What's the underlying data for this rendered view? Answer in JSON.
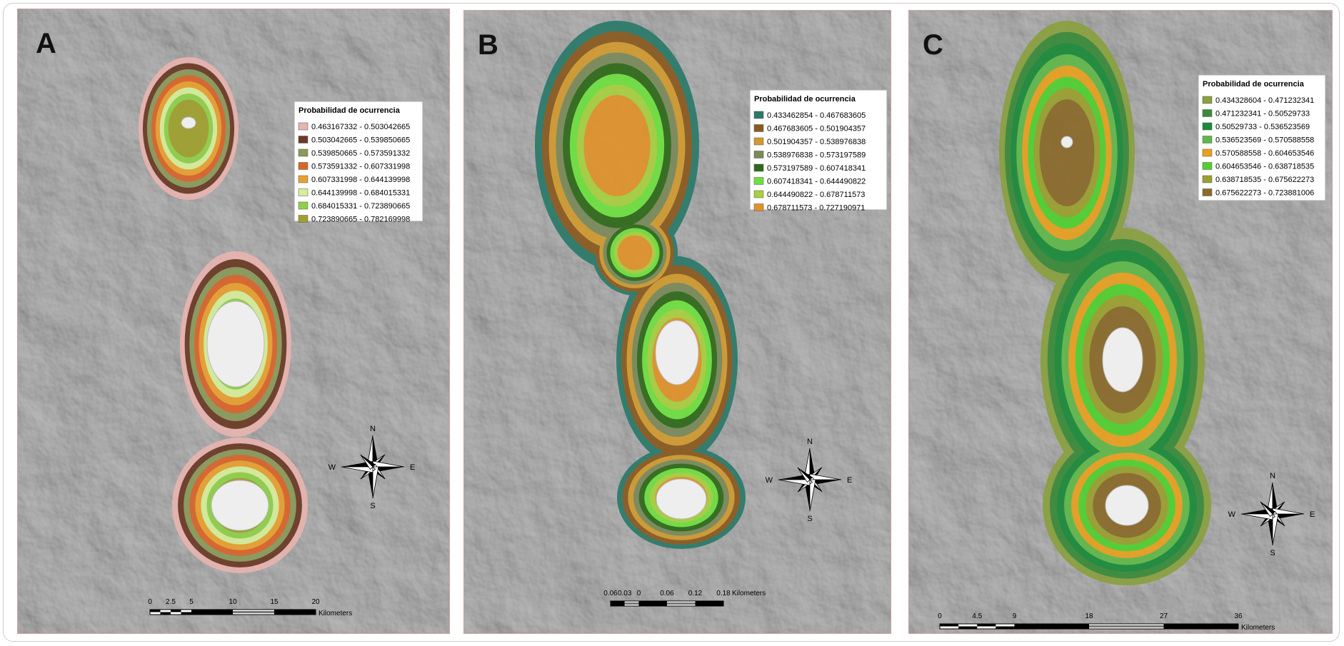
{
  "panels": [
    {
      "letter": "A",
      "legend_title": "Probabilidad de ocurrencia",
      "legend": [
        {
          "label": "0.463167332 - 0.503042665",
          "color": "#e8b4b0"
        },
        {
          "label": "0.503042665 - 0.539850665",
          "color": "#6b3a26"
        },
        {
          "label": "0.539850665 - 0.573591332",
          "color": "#8a9a5a"
        },
        {
          "label": "0.573591332 - 0.607331998",
          "color": "#d9642a"
        },
        {
          "label": "0.607331998 - 0.644139998",
          "color": "#e8a030"
        },
        {
          "label": "0.644139998 - 0.684015331",
          "color": "#d6ee9a"
        },
        {
          "label": "0.684015331 - 0.723890665",
          "color": "#8fd04a"
        },
        {
          "label": "0.723890665 - 0.782169998",
          "color": "#a0a030"
        }
      ],
      "scale_labels": [
        "0",
        "2.5",
        "5",
        "10",
        "15",
        "20"
      ],
      "scale_unit": "Kilometers",
      "compass": {
        "n": "N",
        "s": "S",
        "e": "E",
        "w": "W"
      }
    },
    {
      "letter": "B",
      "legend_title": "Probabilidad de ocurrencia",
      "legend": [
        {
          "label": "0.433462854 - 0.467683605",
          "color": "#2a7a6a"
        },
        {
          "label": "0.467683605 - 0.501904357",
          "color": "#8a5a20"
        },
        {
          "label": "0.501904357 - 0.538976838",
          "color": "#d09a30"
        },
        {
          "label": "0.538976838 - 0.573197589",
          "color": "#7a8a5a"
        },
        {
          "label": "0.573197589 - 0.607418341",
          "color": "#2f6a1a"
        },
        {
          "label": "0.607418341 - 0.644490822",
          "color": "#6ee040"
        },
        {
          "label": "0.644490822 - 0.678711573",
          "color": "#a8d040"
        },
        {
          "label": "0.678711573 - 0.727190971",
          "color": "#e0922a"
        }
      ],
      "scale_labels": [
        "0.06",
        "0.03",
        "0",
        "0.06",
        "0.12",
        "0.18"
      ],
      "scale_unit": "Kilometers",
      "compass": {
        "n": "N",
        "s": "S",
        "e": "E",
        "w": "W"
      }
    },
    {
      "letter": "C",
      "legend_title": "Probabilidad de ocurrencia",
      "legend": [
        {
          "label": "0.434328604 - 0.471232341",
          "color": "#8aa040"
        },
        {
          "label": "0.471232341 - 0.50529733",
          "color": "#3a8a3a"
        },
        {
          "label": "0.50529733 - 0.536523569",
          "color": "#1a8a3a"
        },
        {
          "label": "0.536523569 - 0.570588558",
          "color": "#60b84a"
        },
        {
          "label": "0.570588558 - 0.604653546",
          "color": "#e8a020"
        },
        {
          "label": "0.604653546 - 0.638718535",
          "color": "#50d030"
        },
        {
          "label": "0.638718535 - 0.675622273",
          "color": "#9aa030"
        },
        {
          "label": "0.675622273 - 0.723881006",
          "color": "#8a6a2a"
        }
      ],
      "scale_labels": [
        "0",
        "4.5",
        "9",
        "18",
        "27",
        "36"
      ],
      "scale_unit": "Kilometers",
      "compass": {
        "n": "N",
        "s": "S",
        "e": "E",
        "w": "W"
      }
    }
  ]
}
